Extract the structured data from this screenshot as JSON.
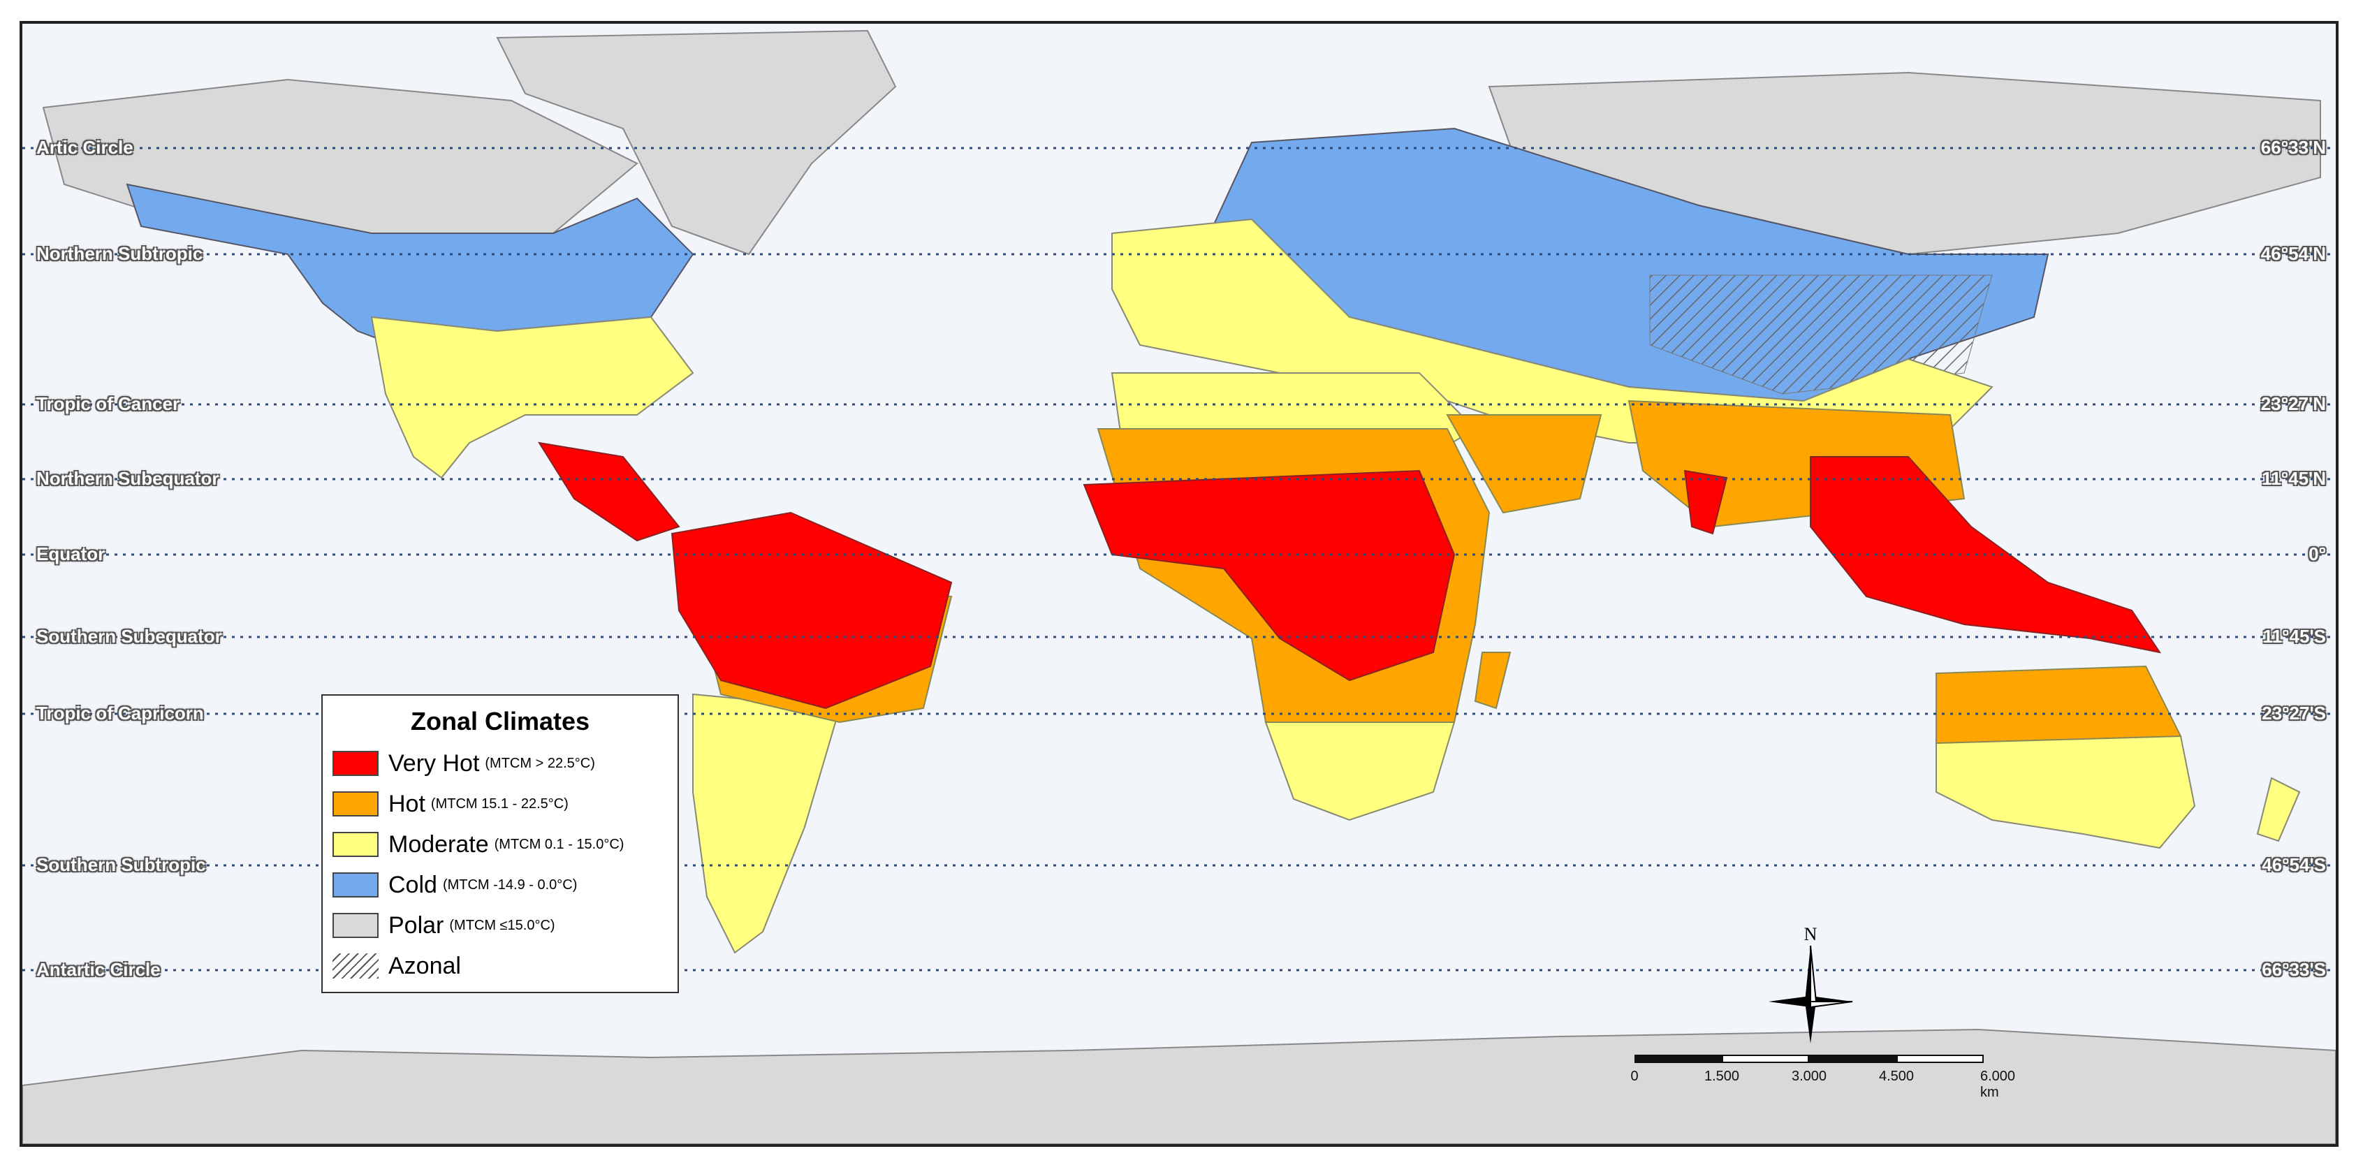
{
  "map": {
    "colors": {
      "very_hot": "#ff0000",
      "hot": "#ffa500",
      "moderate": "#ffff80",
      "cold": "#73aaee",
      "polar": "#d9d9d9",
      "ocean": "#f2f5f9"
    },
    "latitude_lines": [
      {
        "name": "Artic Circle",
        "value": "66°33'N"
      },
      {
        "name": "Northern Subtropic",
        "value": "46°54'N"
      },
      {
        "name": "Tropic of Cancer",
        "value": "23°27'N"
      },
      {
        "name": "Northern Subequator",
        "value": "11°45'N"
      },
      {
        "name": "Equator",
        "value": "0°"
      },
      {
        "name": "Southern Subequator",
        "value": "11°45'S"
      },
      {
        "name": "Tropic of Capricorn",
        "value": "23°27'S"
      },
      {
        "name": "Southern Subtropic",
        "value": "46°54'S"
      },
      {
        "name": "Antartic Circle",
        "value": "66°33'S"
      }
    ],
    "legend": {
      "title": "Zonal Climates",
      "items": [
        {
          "label": "Very Hot",
          "note": "(MTCM > 22.5°C)",
          "color_key": "very_hot"
        },
        {
          "label": "Hot",
          "note": "(MTCM 15.1 - 22.5°C)",
          "color_key": "hot"
        },
        {
          "label": "Moderate",
          "note": "(MTCM 0.1 - 15.0°C)",
          "color_key": "moderate"
        },
        {
          "label": "Cold",
          "note": "(MTCM -14.9 - 0.0°C)",
          "color_key": "cold"
        },
        {
          "label": "Polar",
          "note": "(MTCM ≤15.0°C)",
          "color_key": "polar"
        },
        {
          "label": "Azonal",
          "note": "",
          "color_key": "hatch"
        }
      ]
    },
    "north_label": "N",
    "scale": {
      "ticks": [
        "0",
        "1.500",
        "3.000",
        "4.500",
        "6.000 km"
      ]
    }
  }
}
